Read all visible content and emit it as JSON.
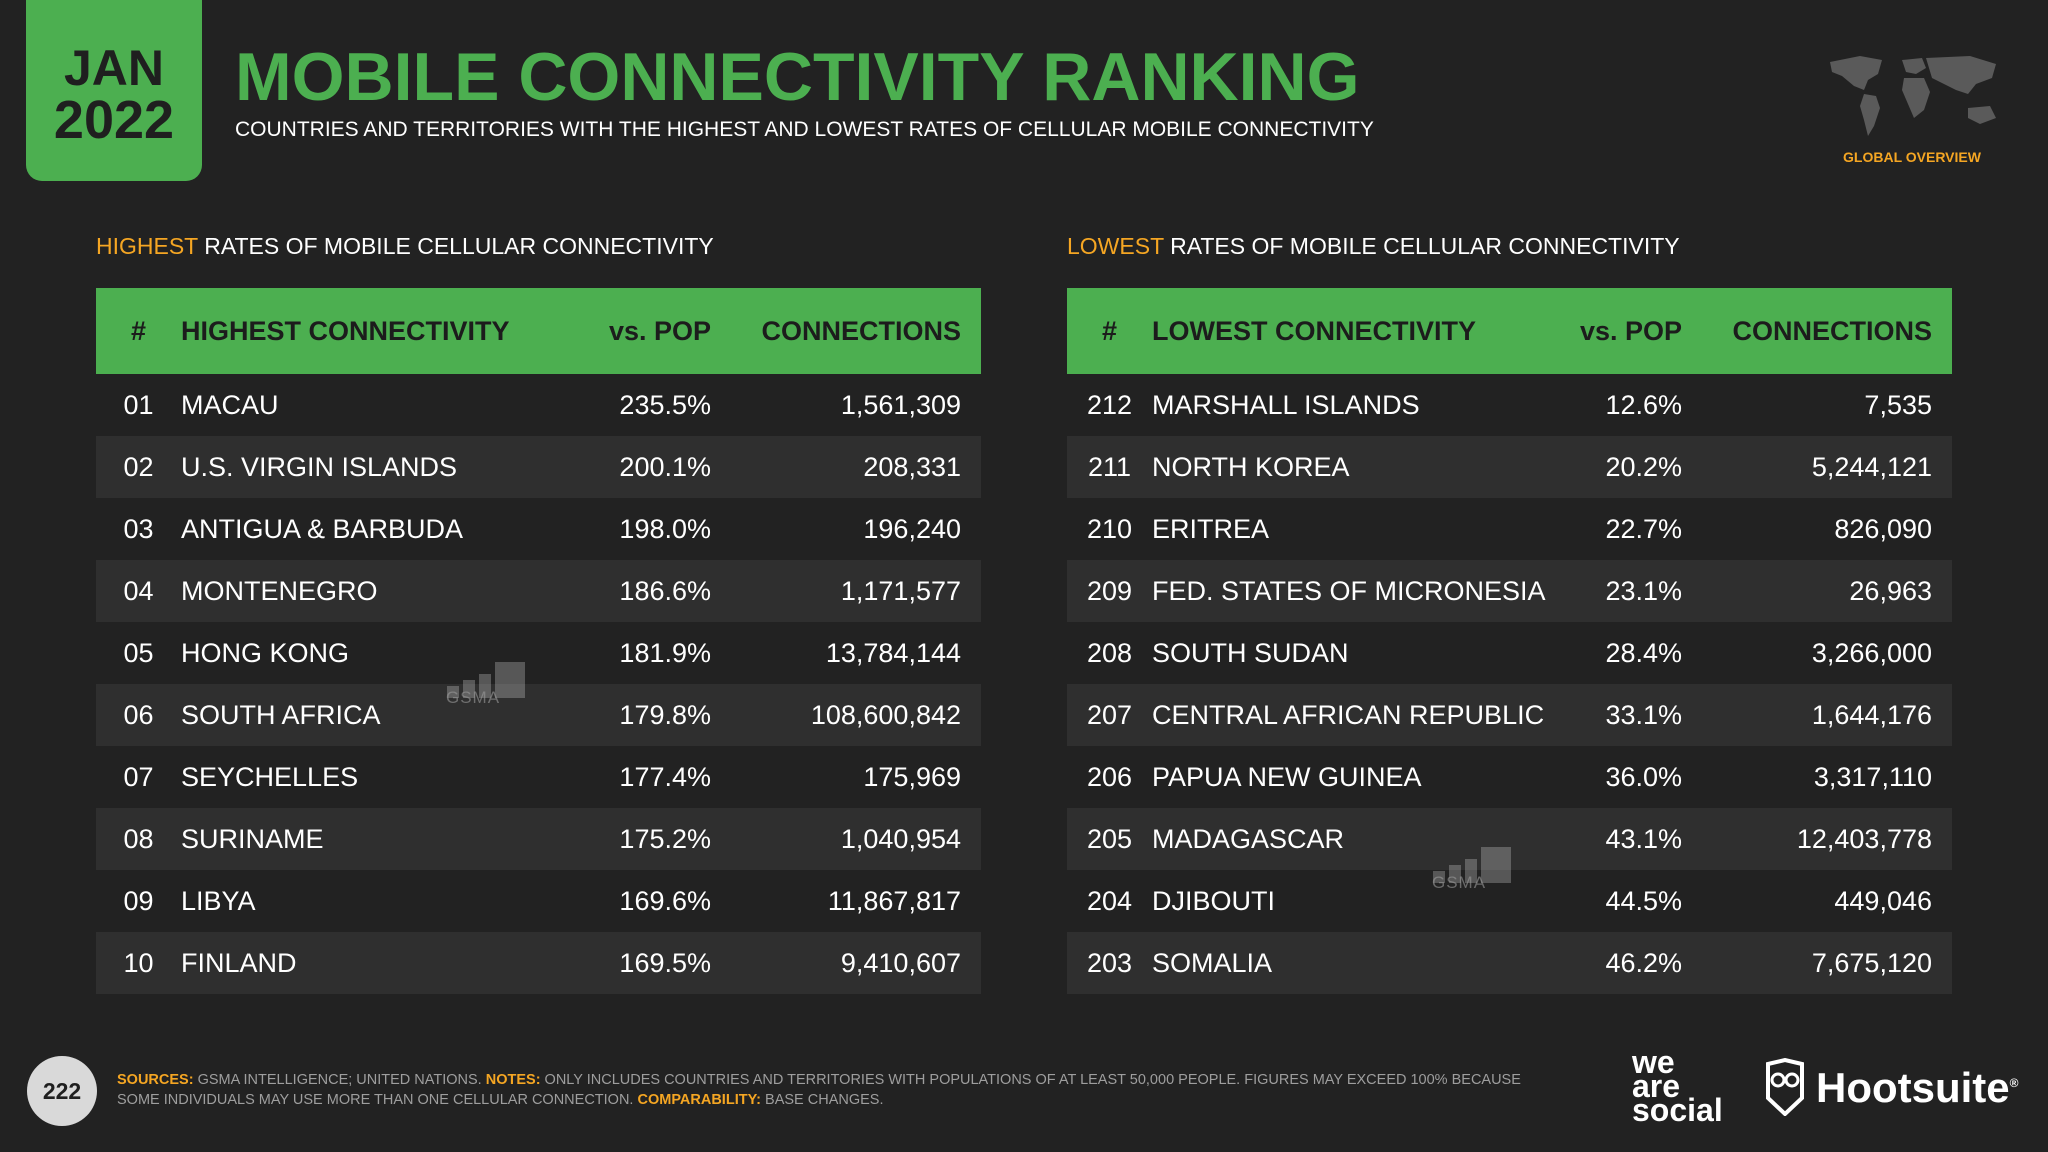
{
  "header": {
    "month": "JAN",
    "year": "2022",
    "title": "MOBILE CONNECTIVITY RANKING",
    "subtitle": "COUNTRIES AND TERRITORIES WITH THE HIGHEST AND LOWEST RATES OF CELLULAR MOBILE CONNECTIVITY",
    "global_label": "GLOBAL OVERVIEW"
  },
  "colors": {
    "accent": "#4caf50",
    "highlight": "#f5a623",
    "background": "#222222"
  },
  "highest": {
    "section_highlight": "HIGHEST",
    "section_rest": " RATES OF MOBILE CELLULAR CONNECTIVITY",
    "columns": [
      "#",
      "HIGHEST CONNECTIVITY",
      "vs. POP",
      "CONNECTIONS"
    ],
    "rows": [
      {
        "rank": "01",
        "name": "MACAU",
        "pop": "235.5%",
        "conn": "1,561,309"
      },
      {
        "rank": "02",
        "name": "U.S. VIRGIN ISLANDS",
        "pop": "200.1%",
        "conn": "208,331"
      },
      {
        "rank": "03",
        "name": "ANTIGUA & BARBUDA",
        "pop": "198.0%",
        "conn": "196,240"
      },
      {
        "rank": "04",
        "name": "MONTENEGRO",
        "pop": "186.6%",
        "conn": "1,171,577"
      },
      {
        "rank": "05",
        "name": "HONG KONG",
        "pop": "181.9%",
        "conn": "13,784,144"
      },
      {
        "rank": "06",
        "name": "SOUTH AFRICA",
        "pop": "179.8%",
        "conn": "108,600,842"
      },
      {
        "rank": "07",
        "name": "SEYCHELLES",
        "pop": "177.4%",
        "conn": "175,969"
      },
      {
        "rank": "08",
        "name": "SURINAME",
        "pop": "175.2%",
        "conn": "1,040,954"
      },
      {
        "rank": "09",
        "name": "LIBYA",
        "pop": "169.6%",
        "conn": "11,867,817"
      },
      {
        "rank": "10",
        "name": "FINLAND",
        "pop": "169.5%",
        "conn": "9,410,607"
      }
    ]
  },
  "lowest": {
    "section_highlight": "LOWEST",
    "section_rest": " RATES OF MOBILE CELLULAR CONNECTIVITY",
    "columns": [
      "#",
      "LOWEST CONNECTIVITY",
      "vs. POP",
      "CONNECTIONS"
    ],
    "rows": [
      {
        "rank": "212",
        "name": "MARSHALL ISLANDS",
        "pop": "12.6%",
        "conn": "7,535"
      },
      {
        "rank": "211",
        "name": "NORTH KOREA",
        "pop": "20.2%",
        "conn": "5,244,121"
      },
      {
        "rank": "210",
        "name": "ERITREA",
        "pop": "22.7%",
        "conn": "826,090"
      },
      {
        "rank": "209",
        "name": "FED. STATES OF MICRONESIA",
        "pop": "23.1%",
        "conn": "26,963"
      },
      {
        "rank": "208",
        "name": "SOUTH SUDAN",
        "pop": "28.4%",
        "conn": "3,266,000"
      },
      {
        "rank": "207",
        "name": "CENTRAL AFRICAN REPUBLIC",
        "pop": "33.1%",
        "conn": "1,644,176"
      },
      {
        "rank": "206",
        "name": "PAPUA NEW GUINEA",
        "pop": "36.0%",
        "conn": "3,317,110"
      },
      {
        "rank": "205",
        "name": "MADAGASCAR",
        "pop": "43.1%",
        "conn": "12,403,778"
      },
      {
        "rank": "204",
        "name": "DJIBOUTI",
        "pop": "44.5%",
        "conn": "449,046"
      },
      {
        "rank": "203",
        "name": "SOMALIA",
        "pop": "46.2%",
        "conn": "7,675,120"
      }
    ]
  },
  "watermark": "GSMA",
  "footer": {
    "page_number": "222",
    "sources_label": "SOURCES:",
    "sources_text": " GSMA INTELLIGENCE; UNITED NATIONS. ",
    "notes_label": "NOTES:",
    "notes_text": " ONLY INCLUDES COUNTRIES AND TERRITORIES WITH POPULATIONS OF AT LEAST 50,000 PEOPLE. FIGURES MAY EXCEED 100% BECAUSE SOME INDIVIDUALS MAY USE MORE THAN ONE CELLULAR CONNECTION. ",
    "comparability_label": "COMPARABILITY:",
    "comparability_text": " BASE CHANGES."
  },
  "brands": {
    "was_line1": "we",
    "was_line2": "are",
    "was_line3": "social",
    "hootsuite": "Hootsuite",
    "reg": "®"
  }
}
